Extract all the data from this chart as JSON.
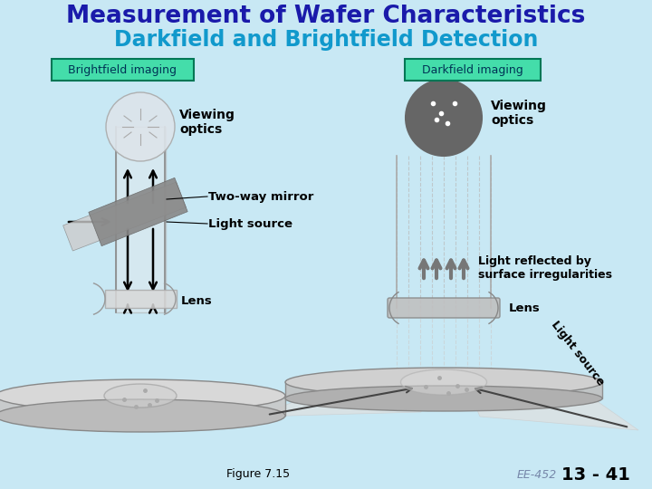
{
  "bg_color": "#c8e8f4",
  "title_line1": "Measurement of Wafer Characteristics",
  "title_line2": "Darkfield and Brightfield Detection",
  "title1_color": "#1a1aaa",
  "title2_color": "#1199cc",
  "label_bf": "Brightfield imaging",
  "label_df": "Darkfield imaging",
  "label_box_color": "#44ddaa",
  "label_text_color": "#003355",
  "viewing_optics_text": "Viewing\noptics",
  "two_way_mirror_text": "Two-way mirror",
  "light_source_text": "Light source",
  "lens_text": "Lens",
  "light_reflected_text": "Light reflected by\nsurface irregularities",
  "light_source_rotated": "Light source",
  "figure_text": "Figure 7.15",
  "ee452_text": "EE-452",
  "page_text": "13 - 41"
}
